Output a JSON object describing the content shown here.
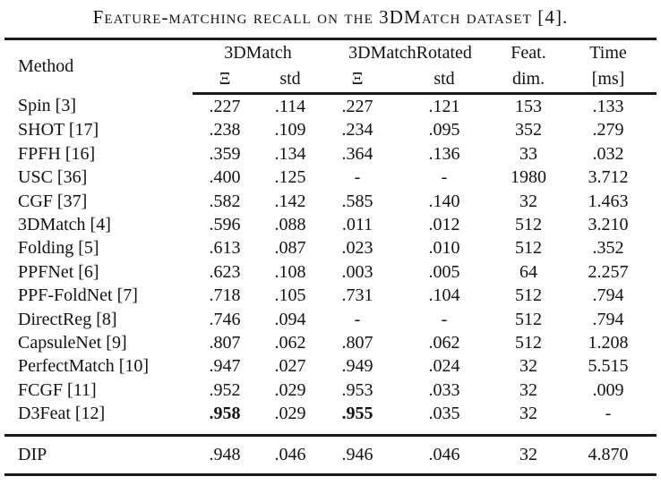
{
  "caption": "Feature-matching recall on the 3DMatch dataset [4].",
  "colors": {
    "background": "#ffffff",
    "text": "#121212",
    "rule": "#1a1a1a"
  },
  "table": {
    "header": {
      "method": "Method",
      "group_3dmatch": "3DMatch",
      "group_3dmatch_rotated": "3DMatchRotated",
      "feat_top": "Feat.",
      "feat_bottom": "dim.",
      "time_top": "Time",
      "time_bottom": "[ms]",
      "sub": [
        "Ξ",
        "std",
        "Ξ",
        "std"
      ]
    },
    "rows": [
      {
        "method": "Spin [3]",
        "values": [
          ".227",
          ".114",
          ".227",
          ".121",
          "153",
          ".133"
        ]
      },
      {
        "method": "SHOT [17]",
        "values": [
          ".238",
          ".109",
          ".234",
          ".095",
          "352",
          ".279"
        ]
      },
      {
        "method": "FPFH [16]",
        "values": [
          ".359",
          ".134",
          ".364",
          ".136",
          "33",
          ".032"
        ]
      },
      {
        "method": "USC [36]",
        "values": [
          ".400",
          ".125",
          "-",
          "-",
          "1980",
          "3.712"
        ]
      },
      {
        "method": "CGF [37]",
        "values": [
          ".582",
          ".142",
          ".585",
          ".140",
          "32",
          "1.463"
        ]
      },
      {
        "method": "3DMatch [4]",
        "values": [
          ".596",
          ".088",
          ".011",
          ".012",
          "512",
          "3.210"
        ]
      },
      {
        "method": "Folding [5]",
        "values": [
          ".613",
          ".087",
          ".023",
          ".010",
          "512",
          ".352"
        ]
      },
      {
        "method": "PPFNet [6]",
        "values": [
          ".623",
          ".108",
          ".003",
          ".005",
          "64",
          "2.257"
        ]
      },
      {
        "method": "PPF-FoldNet [7]",
        "values": [
          ".718",
          ".105",
          ".731",
          ".104",
          "512",
          ".794"
        ]
      },
      {
        "method": "DirectReg [8]",
        "values": [
          ".746",
          ".094",
          "-",
          "-",
          "512",
          ".794"
        ]
      },
      {
        "method": "CapsuleNet [9]",
        "values": [
          ".807",
          ".062",
          ".807",
          ".062",
          "512",
          "1.208"
        ]
      },
      {
        "method": "PerfectMatch [10]",
        "values": [
          ".947",
          ".027",
          ".949",
          ".024",
          "32",
          "5.515"
        ]
      },
      {
        "method": "FCGF [11]",
        "values": [
          ".952",
          ".029",
          ".953",
          ".033",
          "32",
          ".009"
        ]
      },
      {
        "method": "D3Feat [12]",
        "values": [
          ".958",
          ".029",
          ".955",
          ".035",
          "32",
          "-"
        ],
        "bold": [
          0,
          2
        ]
      }
    ],
    "footer_rows": [
      {
        "method": "DIP",
        "values": [
          ".948",
          ".046",
          ".946",
          ".046",
          "32",
          "4.870"
        ]
      }
    ]
  }
}
